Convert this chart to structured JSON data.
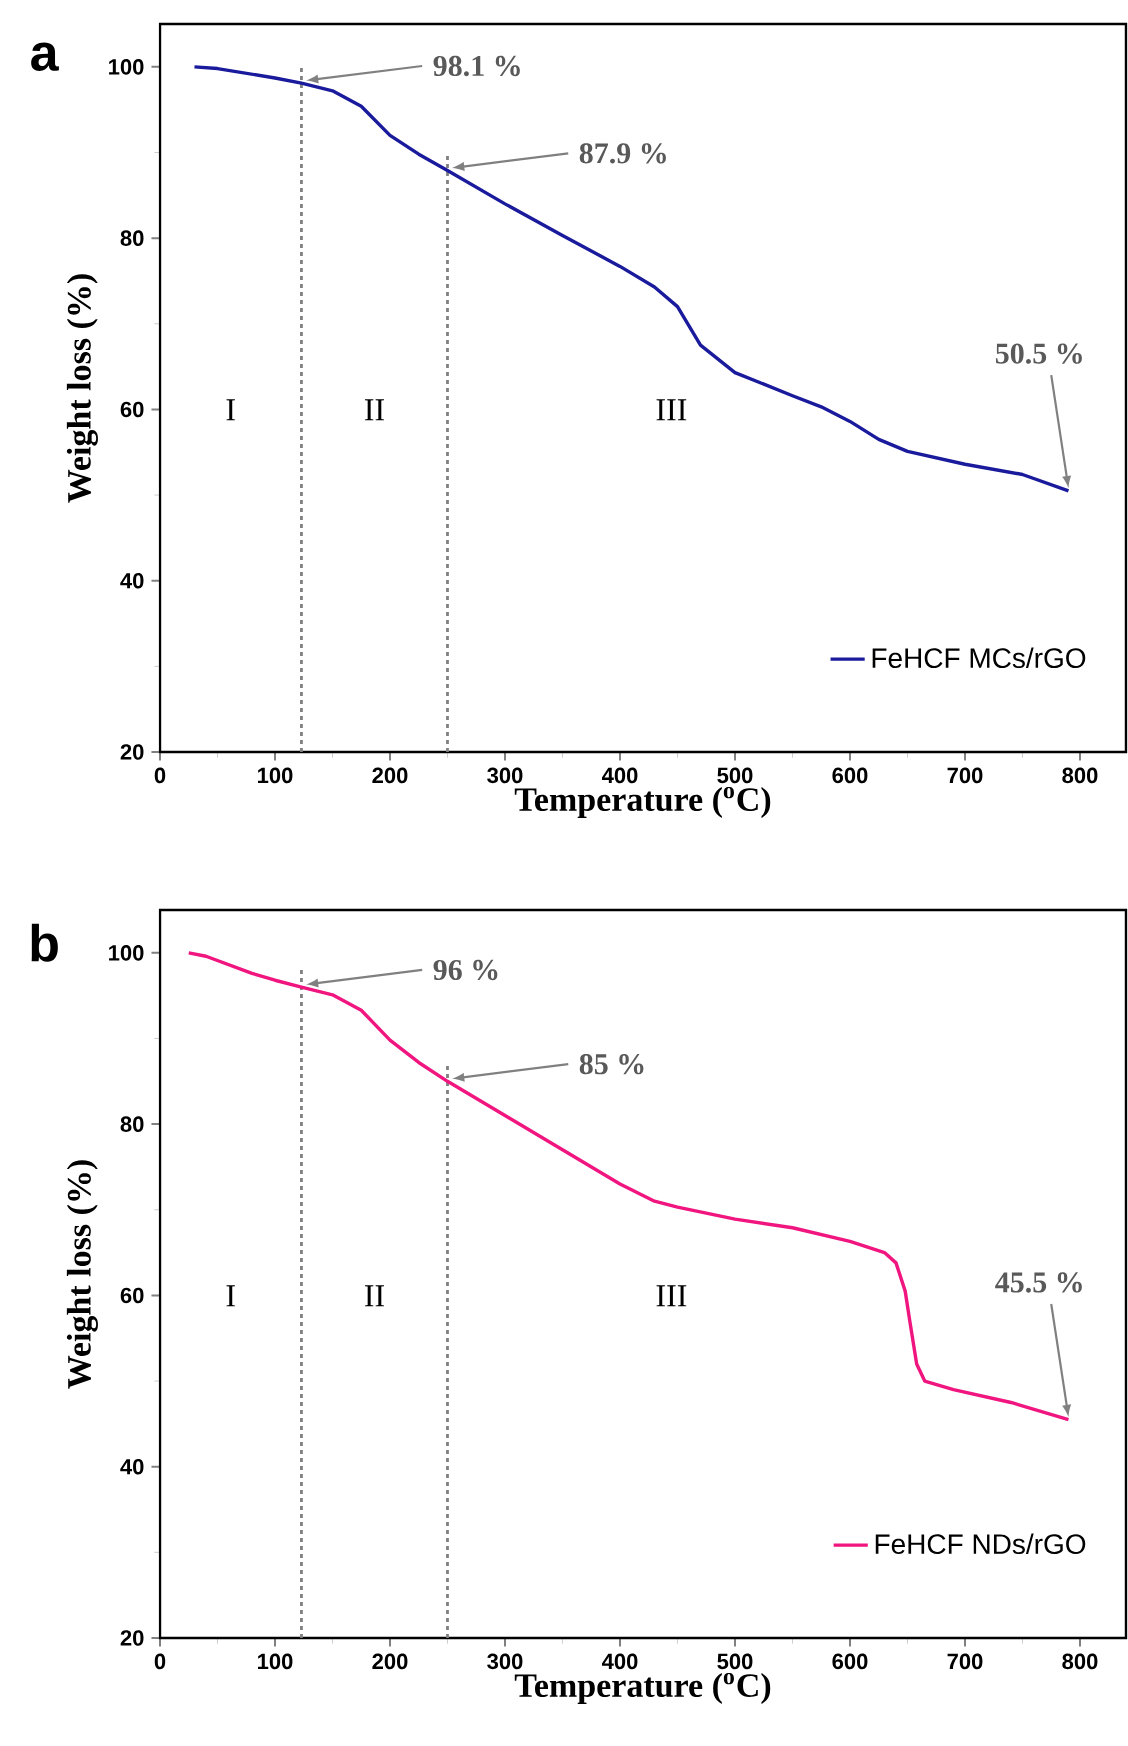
{
  "chart_data": [
    {
      "type": "line",
      "title": "a",
      "xlabel": "Temperature ($^{o}$C)",
      "ylabel": "Weight loss (%)",
      "xlim": [
        0,
        840
      ],
      "ylim": [
        20,
        105
      ],
      "xticks": [
        0,
        100,
        200,
        300,
        400,
        500,
        600,
        700,
        800
      ],
      "yticks": [
        20,
        40,
        60,
        80,
        100
      ],
      "legend": "bottom right",
      "marker": "none",
      "line_style": "solid",
      "x": [
        30,
        50,
        100,
        123,
        150,
        175,
        200,
        225,
        250,
        300,
        350,
        400,
        430,
        450,
        470,
        500,
        550,
        575,
        600,
        625,
        650,
        700,
        750,
        790
      ],
      "series": [
        {
          "name": "FeHCF MCs/rGO",
          "color": "#1a1a9c",
          "values": [
            100,
            99.8,
            98.7,
            98.1,
            97.2,
            95.4,
            92.0,
            89.8,
            87.9,
            84.0,
            80.3,
            76.7,
            74.3,
            72.0,
            67.5,
            64.3,
            61.6,
            60.3,
            58.6,
            56.5,
            55.1,
            53.6,
            52.4,
            50.5
          ]
        }
      ],
      "ref_lines": [
        {
          "axis": "x",
          "value": 123,
          "color": "#808080",
          "line_style": "dotted"
        },
        {
          "axis": "x",
          "value": 250,
          "color": "#808080",
          "line_style": "dotted"
        }
      ],
      "annotations": [
        {
          "text": "98.1 %",
          "x": 123,
          "y": 98.1
        },
        {
          "text": "87.9 %",
          "x": 250,
          "y": 87.9
        },
        {
          "text": "50.5 %",
          "x": 790,
          "y": 50.5
        },
        "I",
        "II",
        "III"
      ]
    },
    {
      "type": "line",
      "title": "b",
      "xlabel": "Temperature ($^{o}$C)",
      "ylabel": "Weight loss (%)",
      "xlim": [
        0,
        840
      ],
      "ylim": [
        20,
        105
      ],
      "xticks": [
        0,
        100,
        200,
        300,
        400,
        500,
        600,
        700,
        800
      ],
      "yticks": [
        20,
        40,
        60,
        80,
        100
      ],
      "legend": "bottom right",
      "marker": "none",
      "line_style": "solid",
      "x": [
        25,
        40,
        60,
        80,
        100,
        123,
        150,
        175,
        200,
        225,
        250,
        300,
        350,
        400,
        430,
        450,
        500,
        550,
        600,
        630,
        640,
        648,
        652,
        658,
        665,
        690,
        740,
        790
      ],
      "series": [
        {
          "name": "FeHCF NDs/rGO",
          "color": "#f0157f",
          "values": [
            100,
            99.6,
            98.6,
            97.6,
            96.8,
            96,
            95.1,
            93.3,
            89.8,
            87.2,
            85,
            81.0,
            77.0,
            73.0,
            71.0,
            70.3,
            68.9,
            67.9,
            66.3,
            65.0,
            63.8,
            60.5,
            57,
            52,
            50.0,
            49.0,
            47.5,
            45.5
          ]
        }
      ],
      "ref_lines": [
        {
          "axis": "x",
          "value": 123,
          "color": "#808080",
          "line_style": "dotted"
        },
        {
          "axis": "x",
          "value": 250,
          "color": "#808080",
          "line_style": "dotted"
        }
      ],
      "annotations": [
        {
          "text": "96 %",
          "x": 123,
          "y": 96
        },
        {
          "text": "85 %",
          "x": 250,
          "y": 85
        },
        {
          "text": "45.5 %",
          "x": 790,
          "y": 45.5
        },
        "I",
        "II",
        "III"
      ]
    }
  ]
}
